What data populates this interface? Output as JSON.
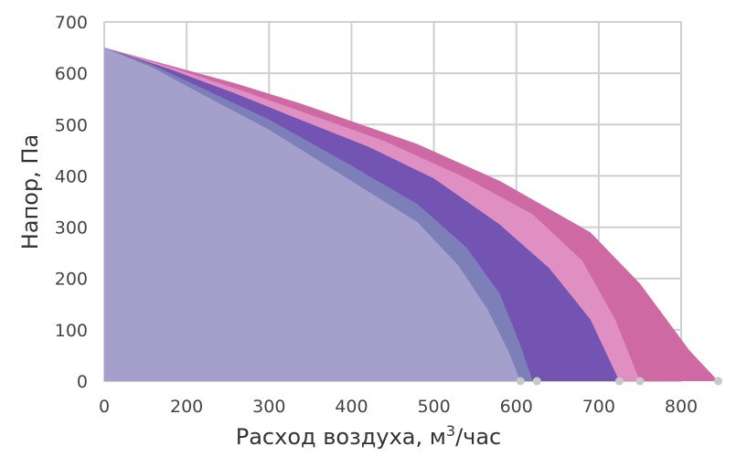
{
  "chart_data": {
    "type": "area",
    "xlabel": "Расход воздуха, м",
    "xlabel_sup": "3",
    "xlabel_suffix": "/час",
    "ylabel": "Напор, Па",
    "xlim": [
      0,
      700
    ],
    "ylim": [
      0,
      700
    ],
    "x_ticks": [
      "0",
      "200",
      "300",
      "400",
      "500",
      "600",
      "700",
      "800"
    ],
    "y_ticks": [
      "0",
      "100",
      "200",
      "300",
      "400",
      "500",
      "600",
      "700"
    ],
    "grid": true,
    "colors": {
      "lavender": "#a49fcb",
      "blue_band": "#7d7fb8",
      "purple": "#7454b2",
      "pink_light": "#df8fc2",
      "magenta": "#cf69a3",
      "grid": "#cfcfcf",
      "marker": "#c8c8c8"
    },
    "series": [
      {
        "key": "magenta",
        "points": [
          [
            0,
            650
          ],
          [
            80,
            615
          ],
          [
            160,
            580
          ],
          [
            240,
            540
          ],
          [
            380,
            462
          ],
          [
            480,
            390
          ],
          [
            590,
            290
          ],
          [
            650,
            190
          ],
          [
            710,
            60
          ],
          [
            745,
            0
          ]
        ]
      },
      {
        "key": "pink_light",
        "points": [
          [
            0,
            650
          ],
          [
            80,
            612
          ],
          [
            160,
            570
          ],
          [
            240,
            525
          ],
          [
            340,
            468
          ],
          [
            440,
            395
          ],
          [
            520,
            325
          ],
          [
            580,
            235
          ],
          [
            620,
            120
          ],
          [
            650,
            0
          ]
        ]
      },
      {
        "key": "purple",
        "points": [
          [
            0,
            650
          ],
          [
            80,
            608
          ],
          [
            160,
            560
          ],
          [
            240,
            508
          ],
          [
            320,
            457
          ],
          [
            400,
            395
          ],
          [
            480,
            305
          ],
          [
            540,
            220
          ],
          [
            590,
            120
          ],
          [
            625,
            0
          ]
        ]
      },
      {
        "key": "blue_band",
        "points": [
          [
            0,
            650
          ],
          [
            60,
            615
          ],
          [
            120,
            570
          ],
          [
            200,
            510
          ],
          [
            300,
            420
          ],
          [
            380,
            345
          ],
          [
            440,
            260
          ],
          [
            480,
            170
          ],
          [
            505,
            70
          ],
          [
            520,
            0
          ]
        ]
      },
      {
        "key": "lavender",
        "points": [
          [
            0,
            650
          ],
          [
            60,
            610
          ],
          [
            120,
            558
          ],
          [
            200,
            490
          ],
          [
            300,
            390
          ],
          [
            380,
            310
          ],
          [
            430,
            225
          ],
          [
            465,
            140
          ],
          [
            490,
            60
          ],
          [
            505,
            0
          ]
        ]
      }
    ],
    "markers": [
      505,
      525,
      625,
      650,
      745
    ]
  }
}
